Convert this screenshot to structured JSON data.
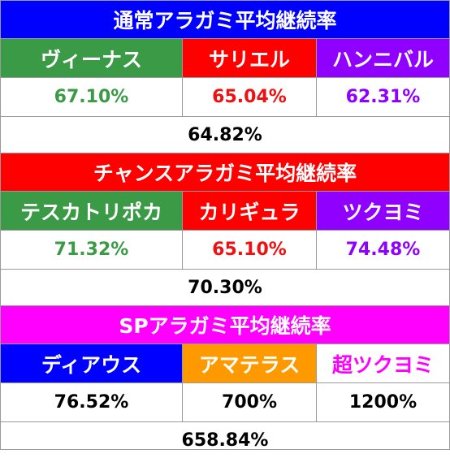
{
  "sections": [
    {
      "title": "通常アラガミ平均継続率",
      "title_bg": "#0000ff",
      "characters": [
        {
          "name": "ヴィーナス",
          "bg": "#3a9a45",
          "rate": "67.10%",
          "rate_color": "#3a9a45"
        },
        {
          "name": "サリエル",
          "bg": "#ff0000",
          "rate": "65.04%",
          "rate_color": "#ee1111"
        },
        {
          "name": "ハンニバル",
          "bg": "#8f00ff",
          "rate": "62.31%",
          "rate_color": "#8f00ff"
        }
      ],
      "average": "64.82%"
    },
    {
      "title": "チャンスアラガミ平均継続率",
      "title_bg": "#ff0000",
      "characters": [
        {
          "name": "テスカトリポカ",
          "bg": "#3a9a45",
          "rate": "71.32%",
          "rate_color": "#3a9a45"
        },
        {
          "name": "カリギュラ",
          "bg": "#ff0000",
          "rate": "65.10%",
          "rate_color": "#ee1111"
        },
        {
          "name": "ツクヨミ",
          "bg": "#8f00ff",
          "rate": "74.48%",
          "rate_color": "#8f00ff"
        }
      ],
      "average": "70.30%"
    },
    {
      "title": "SPアラガミ平均継続率",
      "title_bg": "#ff00ff",
      "characters": [
        {
          "name": "ディアウス",
          "bg": "#0000ff",
          "name_color": "#ffffff",
          "rate": "76.52%",
          "rate_color": "#000000"
        },
        {
          "name": "アマテラス",
          "bg": "#ff9900",
          "name_color": "#ffffff",
          "rate": "700%",
          "rate_color": "#000000"
        },
        {
          "name": "超ツクヨミ",
          "bg": "#ffffff",
          "name_color": "#ff00ff",
          "rate": "1200%",
          "rate_color": "#000000"
        }
      ],
      "average": "658.84%"
    }
  ]
}
